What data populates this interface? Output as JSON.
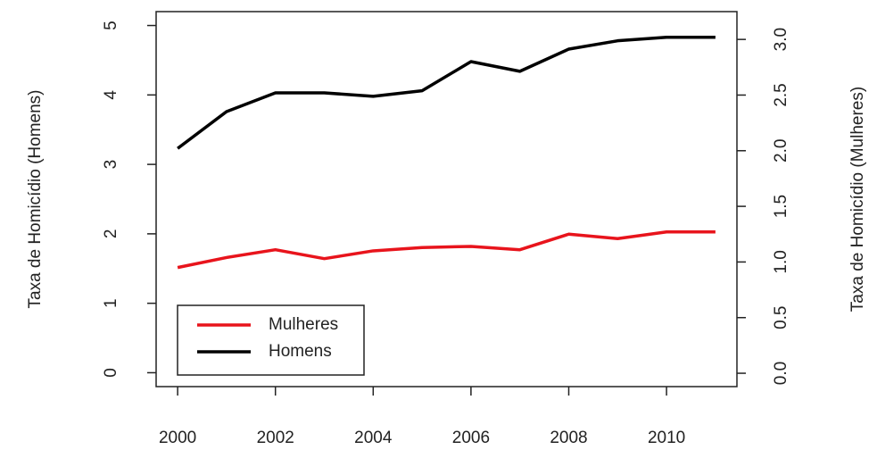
{
  "chart_data": {
    "type": "line",
    "x": [
      2000,
      2001,
      2002,
      2003,
      2004,
      2005,
      2006,
      2007,
      2008,
      2009,
      2010,
      2011
    ],
    "series": [
      {
        "name": "Mulheres",
        "color": "#e8141c",
        "axis": "y2",
        "values": [
          0.95,
          1.04,
          1.11,
          1.03,
          1.1,
          1.13,
          1.14,
          1.11,
          1.25,
          1.21,
          1.27,
          1.27
        ]
      },
      {
        "name": "Homens",
        "color": "#000000",
        "values": [
          3.23,
          3.76,
          4.03,
          4.03,
          3.98,
          4.06,
          4.48,
          4.34,
          4.66,
          4.78,
          4.83,
          4.83
        ]
      }
    ],
    "ylabel": "Taxa de Homicídio (Homens)",
    "y2label": "Taxa de Homicídio (Mulheres)",
    "xlim": [
      1999.56,
      2011.44
    ],
    "xticks": [
      2000,
      2002,
      2004,
      2006,
      2008,
      2010
    ],
    "ylim": [
      -0.2,
      5.2
    ],
    "yticks": [
      0,
      1,
      2,
      3,
      4,
      5
    ],
    "y2lim": [
      -0.12,
      3.25
    ],
    "y2ticks": [
      {
        "value": 0,
        "label": "0.0"
      },
      {
        "value": 0.5,
        "label": "0.5"
      },
      {
        "value": 1,
        "label": "1.0"
      },
      {
        "value": 1.5,
        "label": "1.5"
      },
      {
        "value": 2,
        "label": "2.0"
      },
      {
        "value": 2.5,
        "label": "2.5"
      },
      {
        "value": 3,
        "label": "3.0"
      }
    ],
    "legend": "bottomleft"
  }
}
